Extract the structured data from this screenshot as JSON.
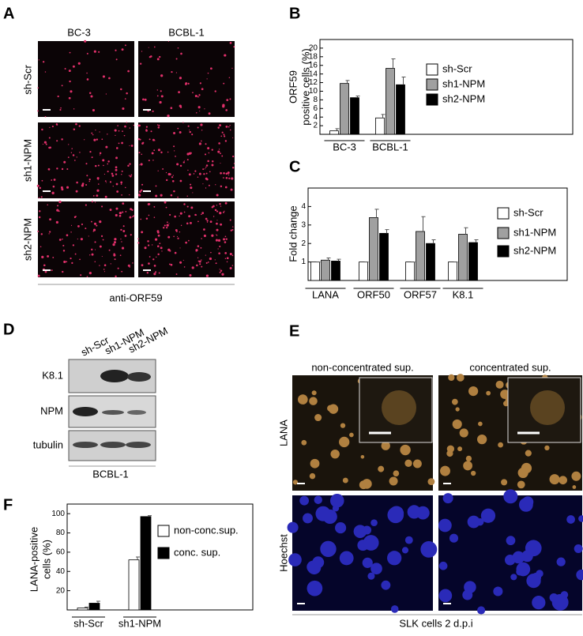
{
  "panel_letters": [
    "A",
    "B",
    "C",
    "D",
    "E",
    "F"
  ],
  "panel_a": {
    "columns": [
      "BC-3",
      "BCBL-1"
    ],
    "rows": [
      "sh-Scr",
      "sh1-NPM",
      "sh2-NPM"
    ],
    "caption": "anti-ORF59"
  },
  "panel_d": {
    "lanes": [
      "sh-Scr",
      "sh1-NPM",
      "sh2-NPM"
    ],
    "rows": [
      "K8.1",
      "NPM",
      "tubulin"
    ],
    "caption": "BCBL-1"
  },
  "panel_e": {
    "columns": [
      "non-concentrated sup.",
      "concentrated sup."
    ],
    "rows": [
      "LANA",
      "Hoechst"
    ],
    "caption": "SLK cells 2 d.p.i"
  },
  "chart_data": [
    {
      "type": "bar",
      "y_label": [
        "ORF59",
        "positive cells (%)"
      ],
      "categories": [
        "BC-3",
        "BCBL-1"
      ],
      "series": [
        {
          "name": "sh-Scr",
          "color": "#ffffff",
          "values": [
            0.8,
            3.8
          ],
          "errors": [
            0.5,
            0.8
          ]
        },
        {
          "name": "sh1-NPM",
          "color": "#a0a0a0",
          "values": [
            11.8,
            15.3
          ],
          "errors": [
            0.7,
            2.2
          ]
        },
        {
          "name": "sh2-NPM",
          "color": "#000000",
          "values": [
            8.5,
            11.5
          ],
          "errors": [
            0.4,
            1.8
          ]
        }
      ],
      "ylim": [
        0,
        22
      ],
      "yticks": [
        2,
        4,
        6,
        8,
        10,
        12,
        14,
        16,
        18,
        20
      ]
    },
    {
      "type": "bar",
      "y_label": [
        "Fold change"
      ],
      "categories": [
        "LANA",
        "ORF50",
        "ORF57",
        "K8.1"
      ],
      "series": [
        {
          "name": "sh-Scr",
          "color": "#ffffff",
          "values": [
            1,
            1,
            1,
            1
          ],
          "errors": [
            0,
            0,
            0,
            0
          ]
        },
        {
          "name": "sh1-NPM",
          "color": "#a0a0a0",
          "values": [
            1.1,
            3.4,
            2.65,
            2.5
          ],
          "errors": [
            0.12,
            0.45,
            0.8,
            0.35
          ]
        },
        {
          "name": "sh2-NPM",
          "color": "#000000",
          "values": [
            1.05,
            2.55,
            2.0,
            2.05
          ],
          "errors": [
            0.1,
            0.2,
            0.2,
            0.15
          ]
        }
      ],
      "ylim": [
        0,
        5
      ],
      "yticks": [
        1,
        2,
        3,
        4
      ]
    },
    {
      "type": "bar",
      "y_label": [
        "LANA-positive",
        "cells (%)"
      ],
      "categories": [
        "sh-Scr",
        "sh1-NPM"
      ],
      "series": [
        {
          "name": "non-conc.sup.",
          "color": "#ffffff",
          "values": [
            2,
            52
          ],
          "errors": [
            1,
            3
          ]
        },
        {
          "name": "conc. sup.",
          "color": "#000000",
          "values": [
            7,
            97
          ],
          "errors": [
            2,
            1
          ]
        }
      ],
      "ylim": [
        0,
        110
      ],
      "yticks": [
        20,
        40,
        60,
        80,
        100
      ]
    }
  ]
}
